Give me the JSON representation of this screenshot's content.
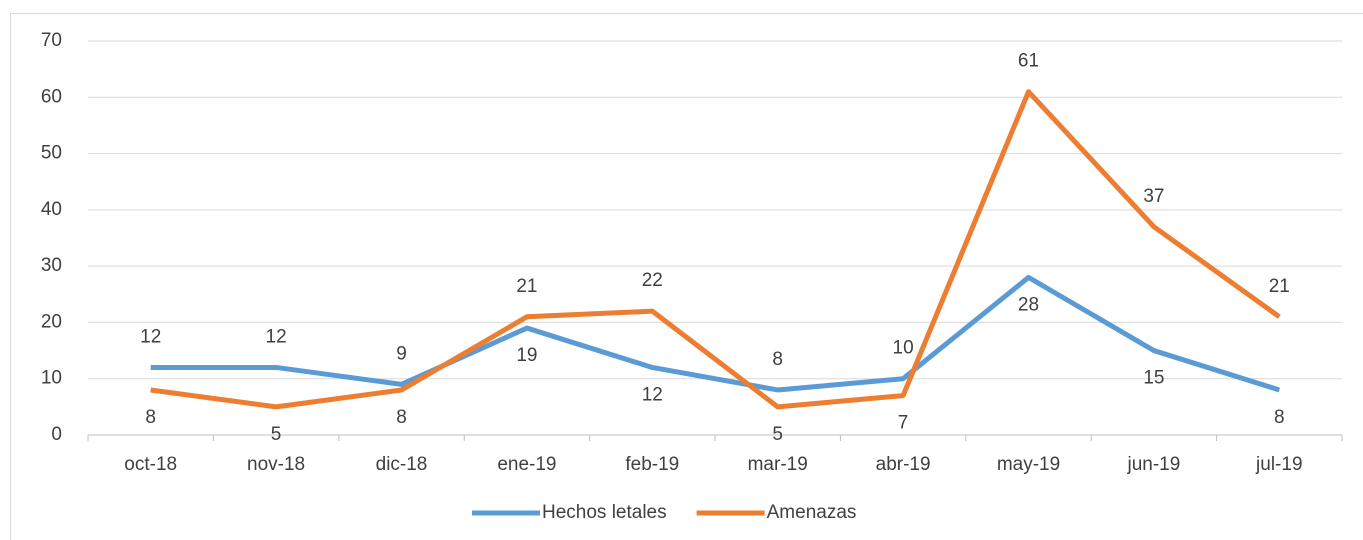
{
  "chart_data": {
    "type": "line",
    "categories": [
      "oct-18",
      "nov-18",
      "dic-18",
      "ene-19",
      "feb-19",
      "mar-19",
      "abr-19",
      "may-19",
      "jun-19",
      "jul-19"
    ],
    "series": [
      {
        "name": "Hechos letales",
        "color": "#5b9bd5",
        "values": [
          12,
          12,
          9,
          19,
          12,
          8,
          10,
          28,
          15,
          8
        ]
      },
      {
        "name": "Amenazas",
        "color": "#ed7d31",
        "values": [
          8,
          5,
          8,
          21,
          22,
          5,
          7,
          61,
          37,
          21
        ]
      }
    ],
    "ylim": [
      0,
      70
    ],
    "yticks": [
      0,
      10,
      20,
      30,
      40,
      50,
      60,
      70
    ],
    "grid": true,
    "legend": "bottom"
  }
}
